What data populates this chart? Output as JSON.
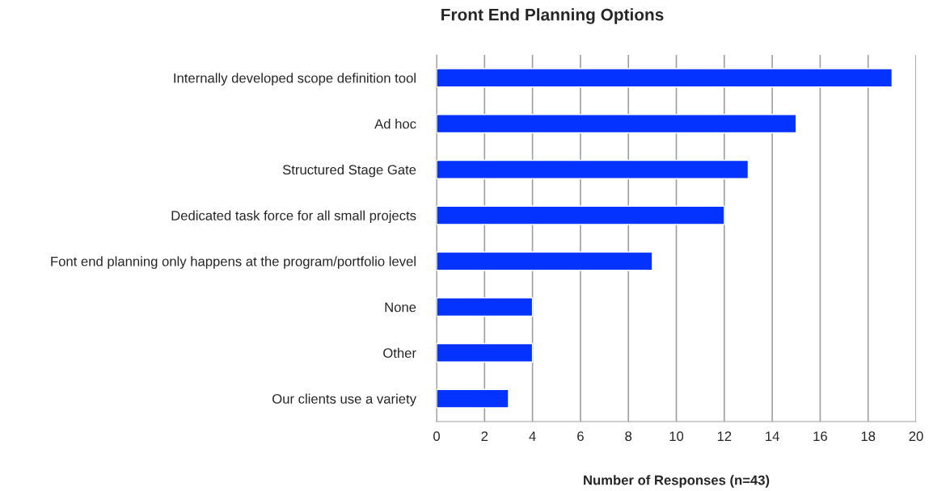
{
  "chart_data": {
    "type": "bar",
    "orientation": "horizontal",
    "title": "Front End Planning Options",
    "xlabel": "Number of Responses (n=43)",
    "categories": [
      "Internally developed scope definition tool",
      "Ad hoc",
      "Structured Stage Gate",
      "Dedicated task force for all small projects",
      "Font end planning only happens at the program/portfolio level",
      "None",
      "Other",
      "Our clients use a variety"
    ],
    "values": [
      19,
      15,
      13,
      12,
      9,
      4,
      4,
      3
    ],
    "color": "#0433ff",
    "xlim": [
      0,
      20
    ],
    "xticks": [
      0,
      2,
      4,
      6,
      8,
      10,
      12,
      14,
      16,
      18,
      20
    ],
    "grid": "x"
  }
}
